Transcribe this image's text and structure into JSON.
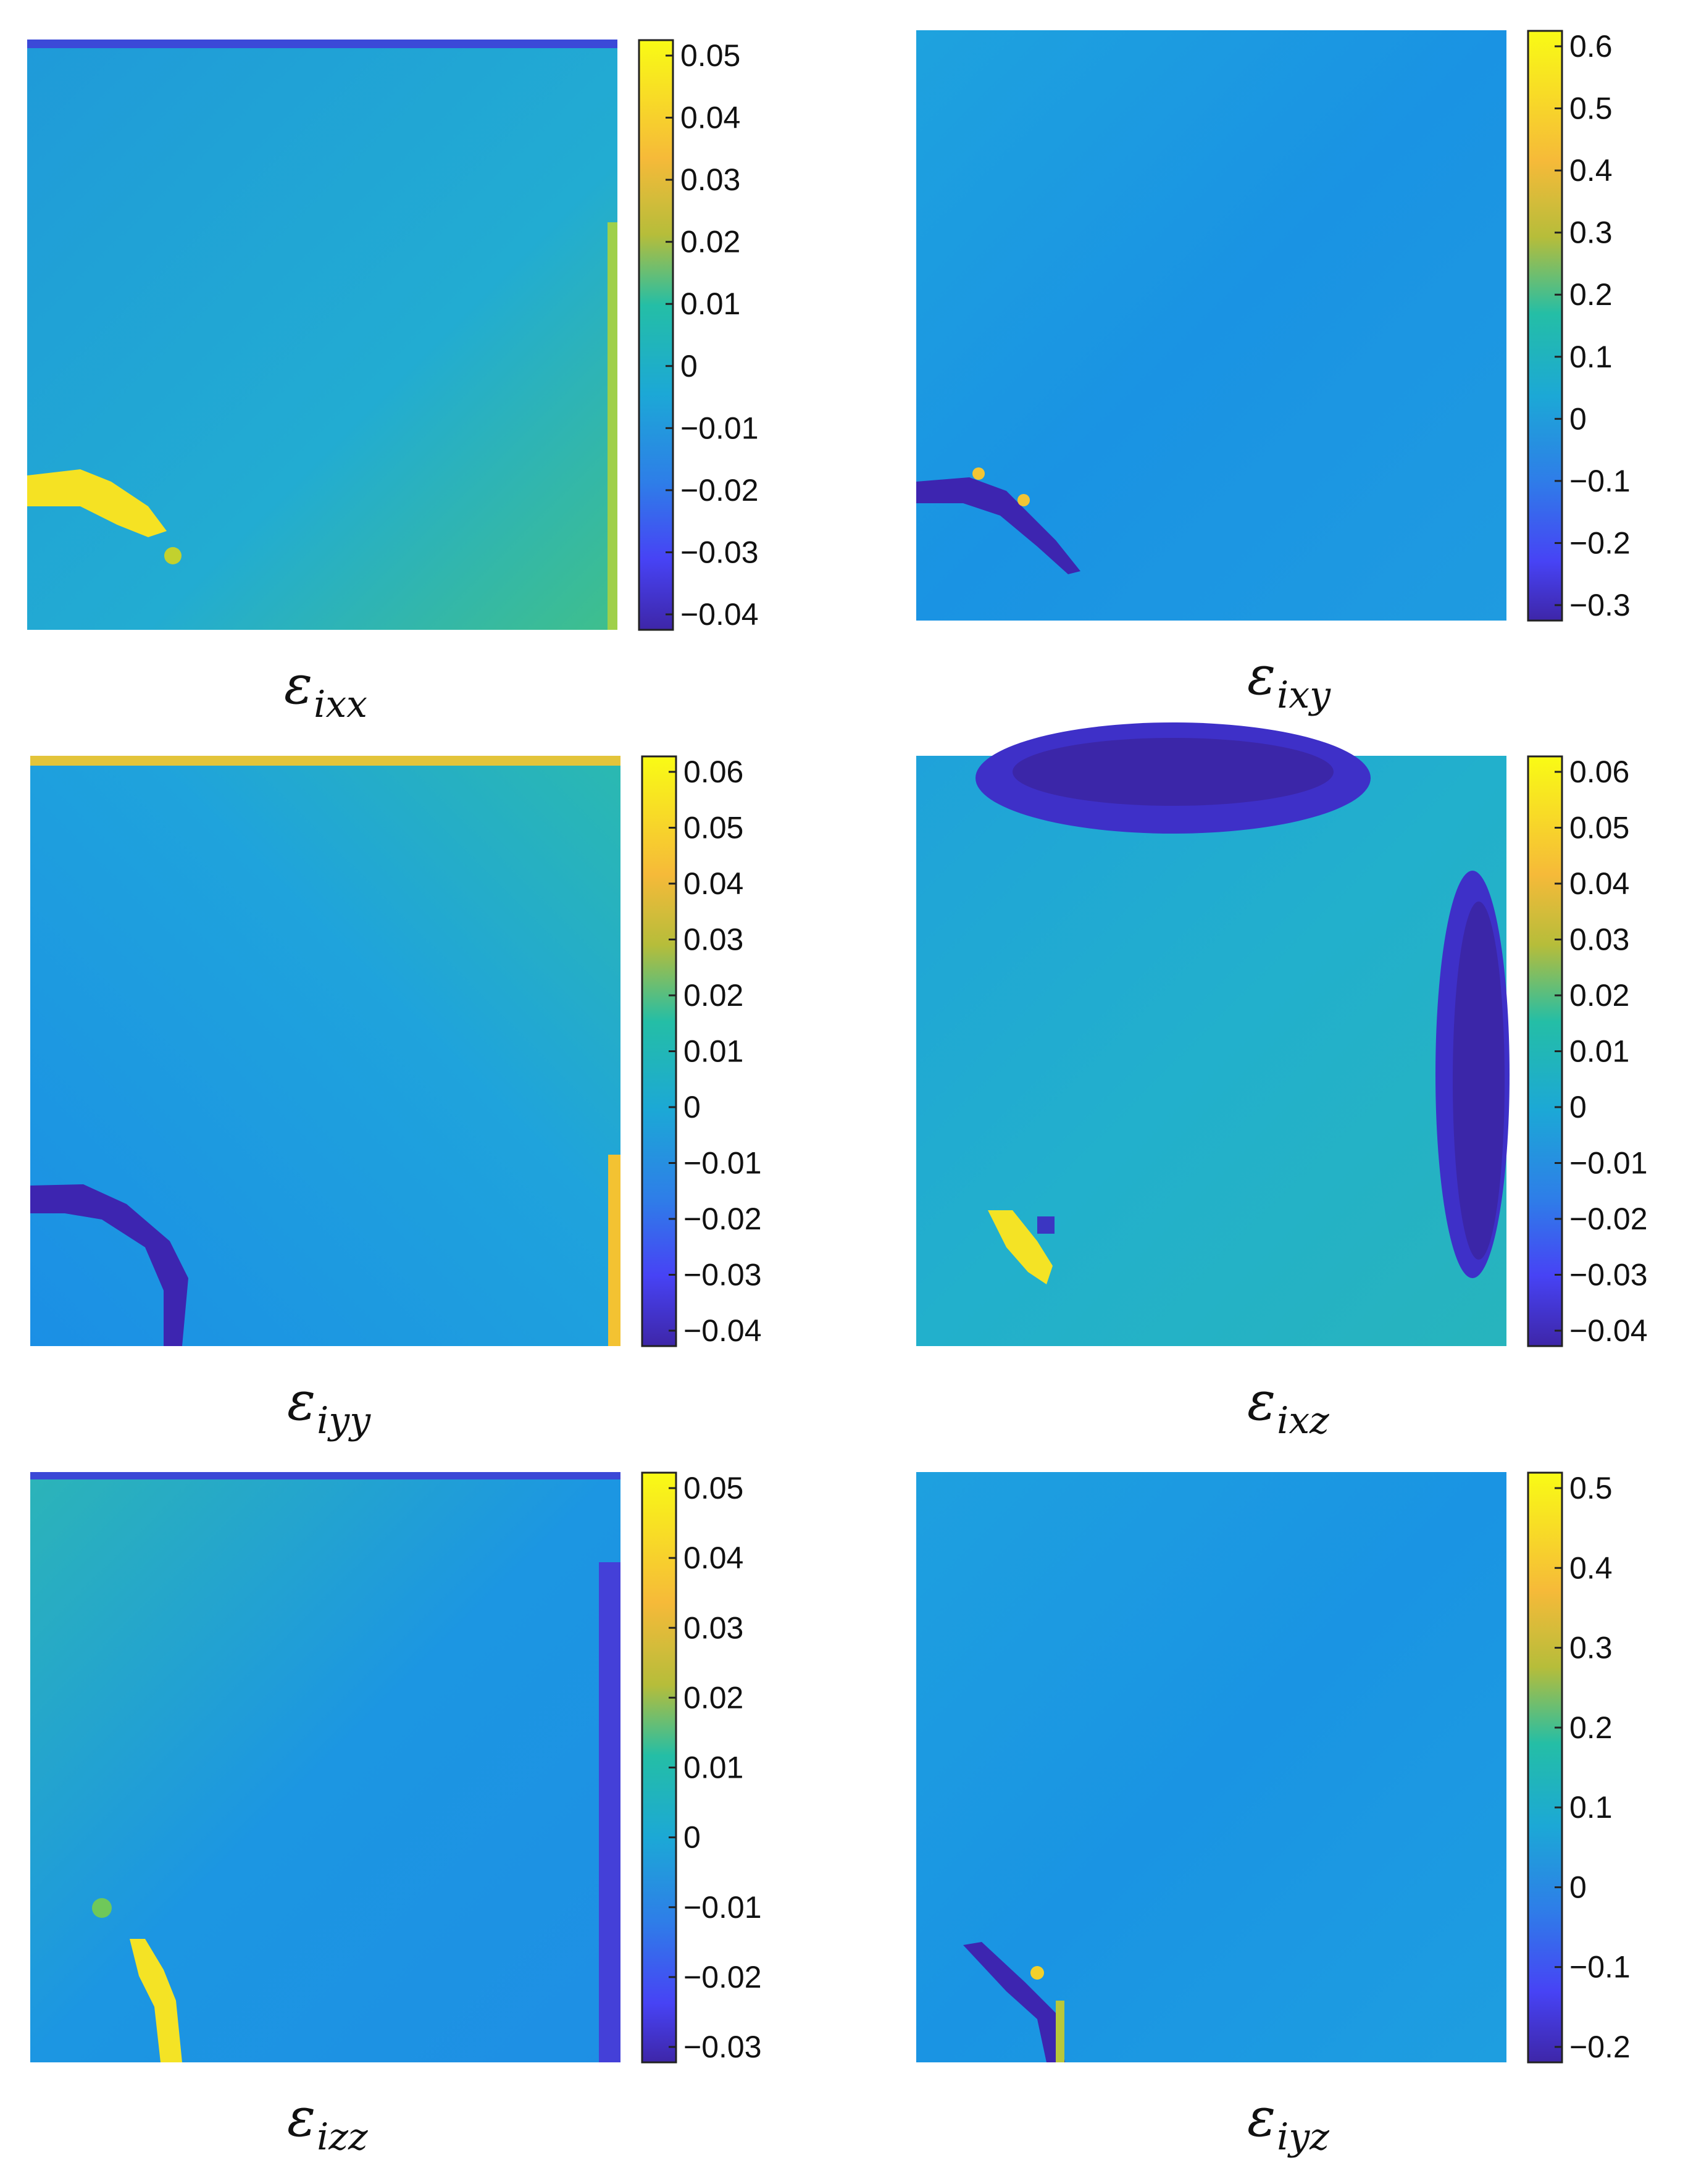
{
  "colors": {
    "colormap": [
      "#3e26a8",
      "#4743f5",
      "#2e7ee8",
      "#1ca8d6",
      "#24bea6",
      "#65c85c",
      "#b6bd3a",
      "#f6ba39",
      "#f9fb15"
    ],
    "field_base": "#24a2de",
    "frame": "#222222"
  },
  "chart_data": [
    {
      "type": "heatmap",
      "symbol": "ε",
      "subscript": "ixx",
      "colorbar": {
        "ticks": [
          "0.05",
          "0.04",
          "0.03",
          "0.02",
          "0.01",
          "0",
          "−0.01",
          "−0.02",
          "−0.03",
          "−0.04"
        ],
        "range": [
          -0.045,
          0.055
        ]
      }
    },
    {
      "type": "heatmap",
      "symbol": "ε",
      "subscript": "ixy",
      "colorbar": {
        "ticks": [
          "0.6",
          "0.5",
          "0.4",
          "0.3",
          "0.2",
          "0.1",
          "0",
          "−0.1",
          "−0.2",
          "−0.3"
        ],
        "range": [
          -0.3,
          0.6
        ]
      }
    },
    {
      "type": "heatmap",
      "symbol": "ε",
      "subscript": "iyy",
      "colorbar": {
        "ticks": [
          "0.06",
          "0.05",
          "0.04",
          "0.03",
          "0.02",
          "0.01",
          "0",
          "−0.01",
          "−0.02",
          "−0.03",
          "−0.04"
        ],
        "range": [
          -0.04,
          0.06
        ]
      }
    },
    {
      "type": "heatmap",
      "symbol": "ε",
      "subscript": "ixz",
      "colorbar": {
        "ticks": [
          "0.06",
          "0.05",
          "0.04",
          "0.03",
          "0.02",
          "0.01",
          "0",
          "−0.01",
          "−0.02",
          "−0.03",
          "−0.04"
        ],
        "range": [
          -0.04,
          0.06
        ]
      }
    },
    {
      "type": "heatmap",
      "symbol": "ε",
      "subscript": "izz",
      "colorbar": {
        "ticks": [
          "0.05",
          "0.04",
          "0.03",
          "0.02",
          "0.01",
          "0",
          "−0.01",
          "−0.02",
          "−0.03"
        ],
        "range": [
          -0.03,
          0.05
        ]
      }
    },
    {
      "type": "heatmap",
      "symbol": "ε",
      "subscript": "iyz",
      "colorbar": {
        "ticks": [
          "0.5",
          "0.4",
          "0.3",
          "0.2",
          "0.1",
          "0",
          "−0.1",
          "−0.2"
        ],
        "range": [
          -0.25,
          0.5
        ]
      }
    }
  ]
}
